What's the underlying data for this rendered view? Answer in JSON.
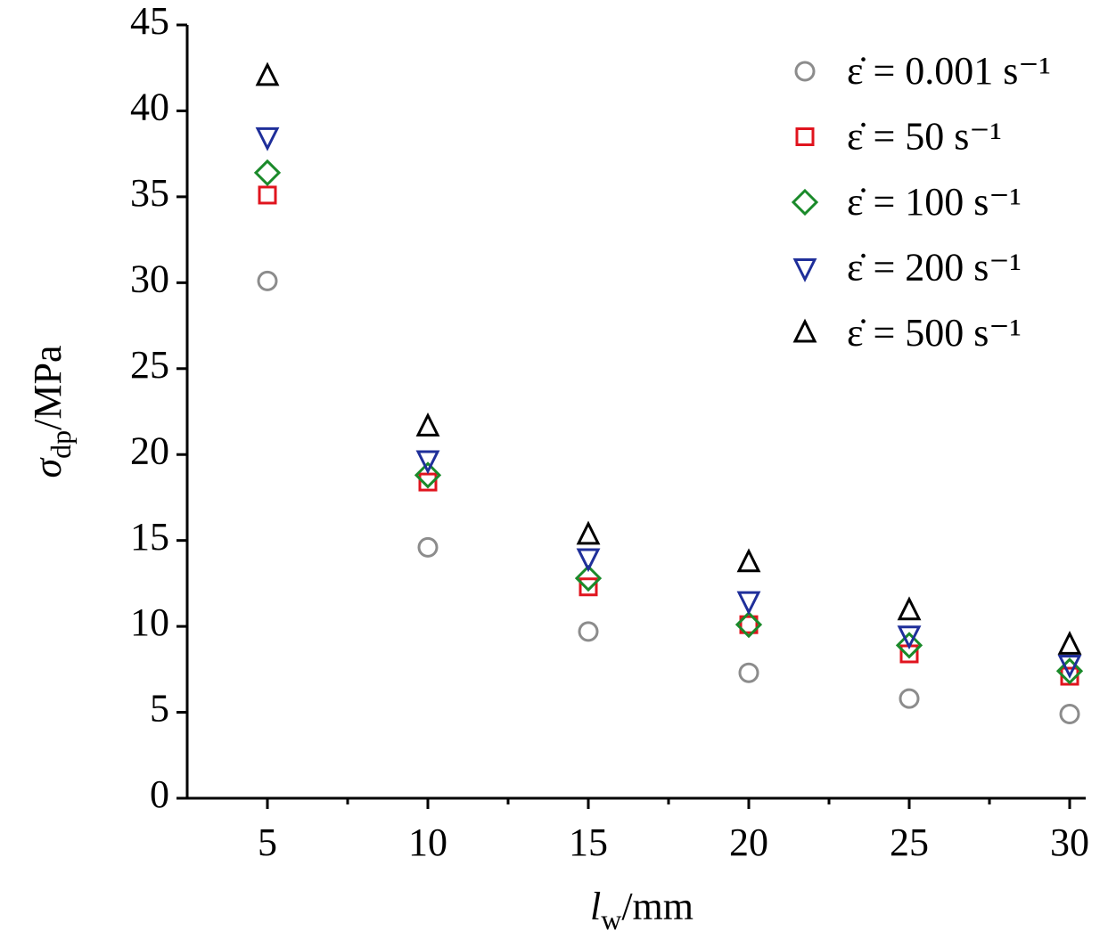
{
  "chart_data": {
    "type": "scatter",
    "x_label": [
      "l",
      "w",
      "/mm"
    ],
    "y_label": [
      "σ",
      "dp",
      "/MPa"
    ],
    "xlim": [
      2.5,
      30.5
    ],
    "xticks": [
      5,
      10,
      15,
      20,
      25,
      30
    ],
    "ylim": [
      0,
      45
    ],
    "yticks": [
      0,
      5,
      10,
      15,
      20,
      25,
      30,
      35,
      40,
      45
    ],
    "legend": "upper right",
    "series": [
      {
        "name": "ε̇ = 0.001 s⁻¹",
        "color": "#8c8c8c",
        "marker": "circle",
        "x": [
          5,
          10,
          15,
          20,
          25,
          30
        ],
        "values": [
          30.1,
          14.6,
          9.7,
          7.3,
          5.8,
          4.9
        ]
      },
      {
        "name": "ε̇ = 50 s⁻¹",
        "color": "#e0141e",
        "marker": "square",
        "x": [
          5,
          10,
          15,
          20,
          25,
          30
        ],
        "values": [
          35.1,
          18.4,
          12.3,
          10.1,
          8.4,
          7.1
        ]
      },
      {
        "name": "ε̇ = 100 s⁻¹",
        "color": "#1a8a2a",
        "marker": "diamond",
        "x": [
          5,
          10,
          15,
          20,
          25,
          30
        ],
        "values": [
          36.4,
          18.8,
          12.8,
          10.1,
          8.9,
          7.4
        ]
      },
      {
        "name": "ε̇ = 200 s⁻¹",
        "color": "#1f2f9a",
        "marker": "triangle-down",
        "x": [
          5,
          10,
          15,
          20,
          25,
          30
        ],
        "values": [
          38.5,
          19.7,
          14.0,
          11.5,
          9.5,
          7.8
        ]
      },
      {
        "name": "ε̇ = 500 s⁻¹",
        "color": "#000000",
        "marker": "triangle-up",
        "x": [
          5,
          10,
          15,
          20,
          25,
          30
        ],
        "values": [
          42.0,
          21.6,
          15.3,
          13.7,
          10.9,
          8.9
        ]
      }
    ]
  }
}
